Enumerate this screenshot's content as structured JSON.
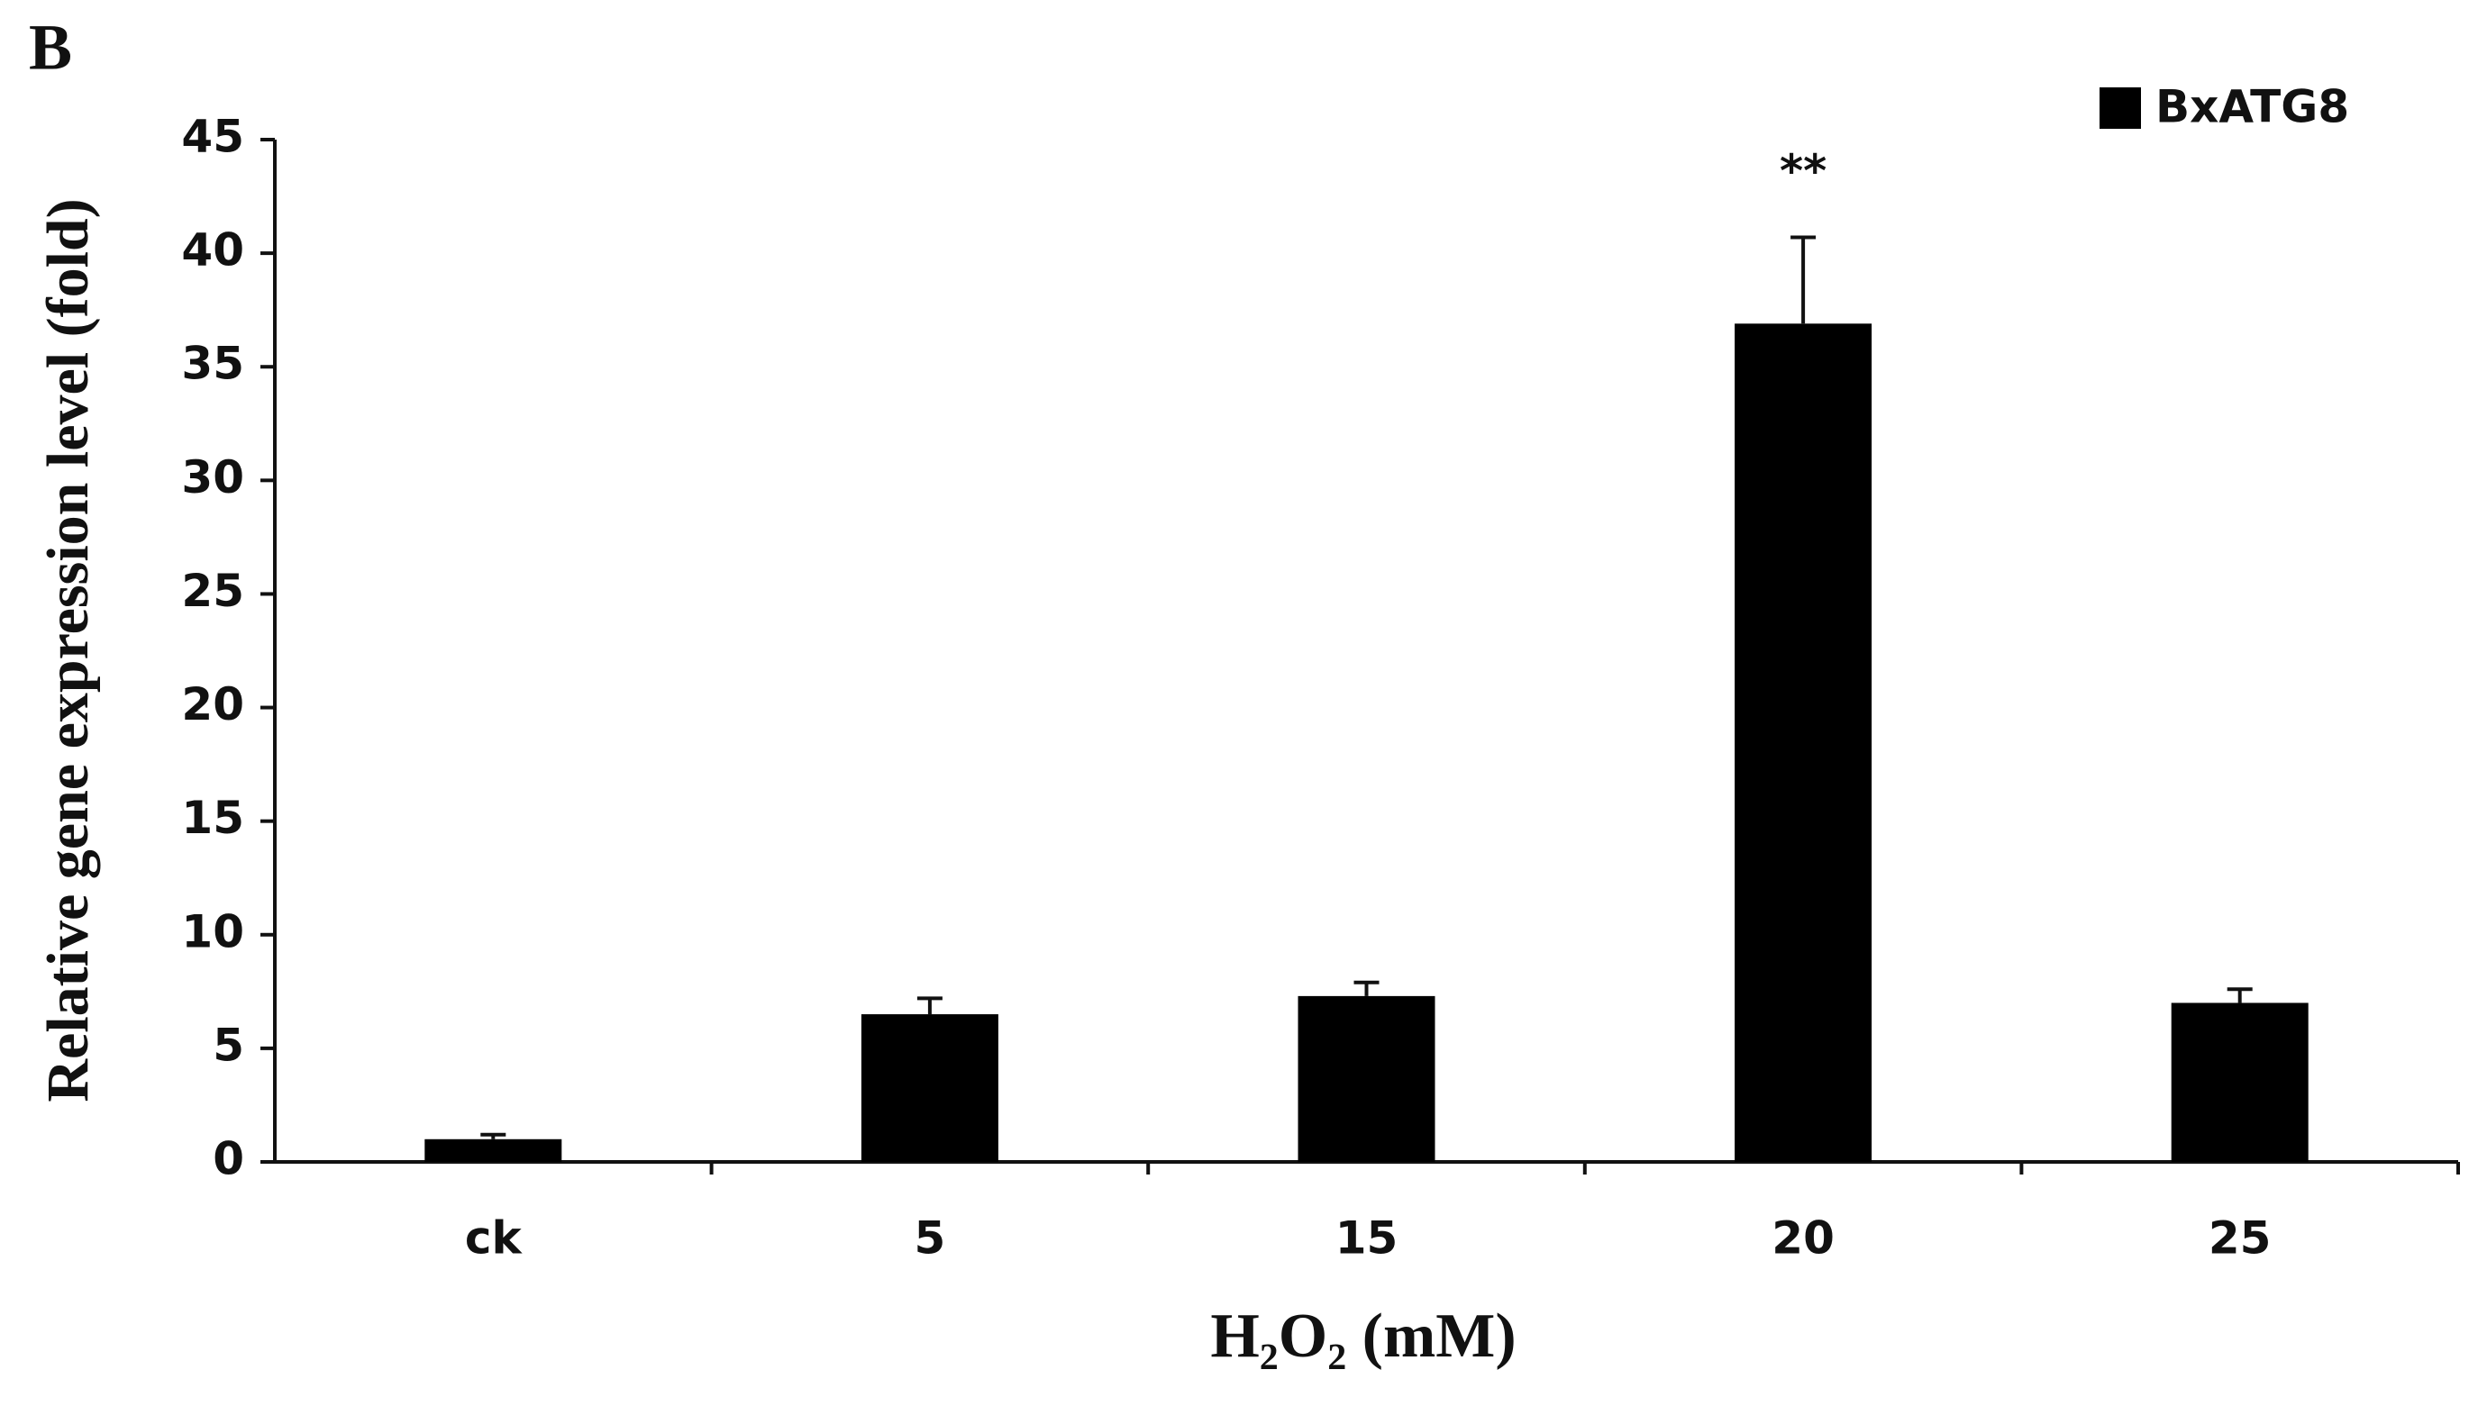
{
  "chart_data": {
    "type": "bar",
    "panel_label": "B",
    "y_label": "Relative gene expression level (fold)",
    "x_label": "H₂O₂ (mM)",
    "categories": [
      "ck",
      "5",
      "15",
      "20",
      "25"
    ],
    "series": [
      {
        "name": "BxATG8",
        "color": "#000000",
        "values": [
          1.0,
          6.5,
          7.3,
          36.9,
          7.0
        ],
        "errors": [
          0.2,
          0.7,
          0.6,
          3.8,
          0.6
        ]
      }
    ],
    "annotations": [
      {
        "category_index": 3,
        "text": "**",
        "color": "#1f3550"
      }
    ],
    "ylim": [
      0,
      45
    ],
    "yticks": [
      0,
      5,
      10,
      15,
      20,
      25,
      30,
      35,
      40,
      45
    ],
    "grid": false,
    "legend": "top-right"
  }
}
